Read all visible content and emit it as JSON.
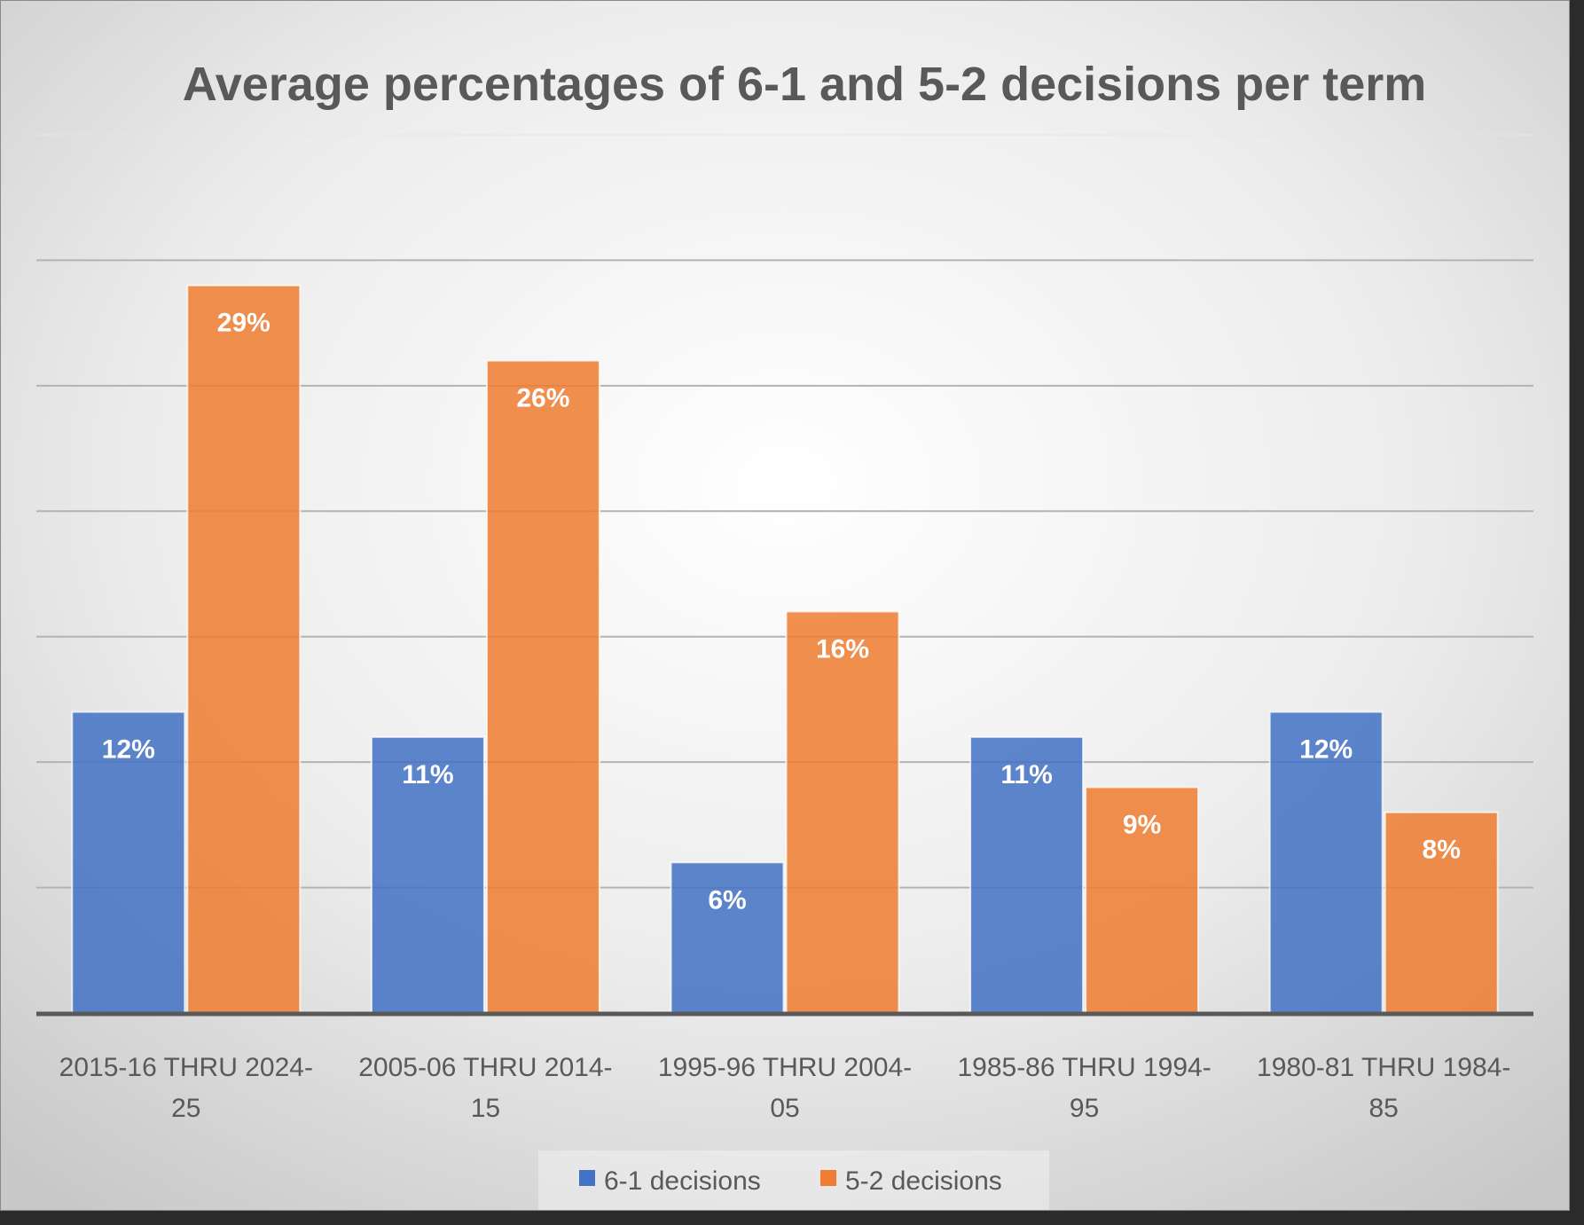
{
  "chart_data": {
    "type": "bar",
    "title": "Average percentages of 6-1 and 5-2 decisions per term",
    "xlabel": "",
    "ylabel": "",
    "categories": [
      [
        "2015-16 THRU 2024-",
        "25"
      ],
      [
        "2005-06 THRU 2014-",
        "15"
      ],
      [
        "1995-96 THRU 2004-",
        "05"
      ],
      [
        "1985-86 THRU 1994-",
        "95"
      ],
      [
        "1980-81 THRU 1984-",
        "85"
      ]
    ],
    "series": [
      {
        "name": "6-1 decisions",
        "color": "#4472c4",
        "values": [
          12,
          11,
          6,
          11,
          12
        ],
        "labels": [
          "12%",
          "11%",
          "6%",
          "11%",
          "12%"
        ]
      },
      {
        "name": "5-2 decisions",
        "color": "#ed7d31",
        "values": [
          29,
          26,
          16,
          9,
          8
        ],
        "labels": [
          "29%",
          "26%",
          "16%",
          "9%",
          "8%"
        ]
      }
    ],
    "ylim": [
      0,
      35
    ],
    "y_gridline_step": 5,
    "y_axis_labels_shown": false,
    "grid": true,
    "data_labels": "inside-end",
    "legend_position": "bottom"
  }
}
